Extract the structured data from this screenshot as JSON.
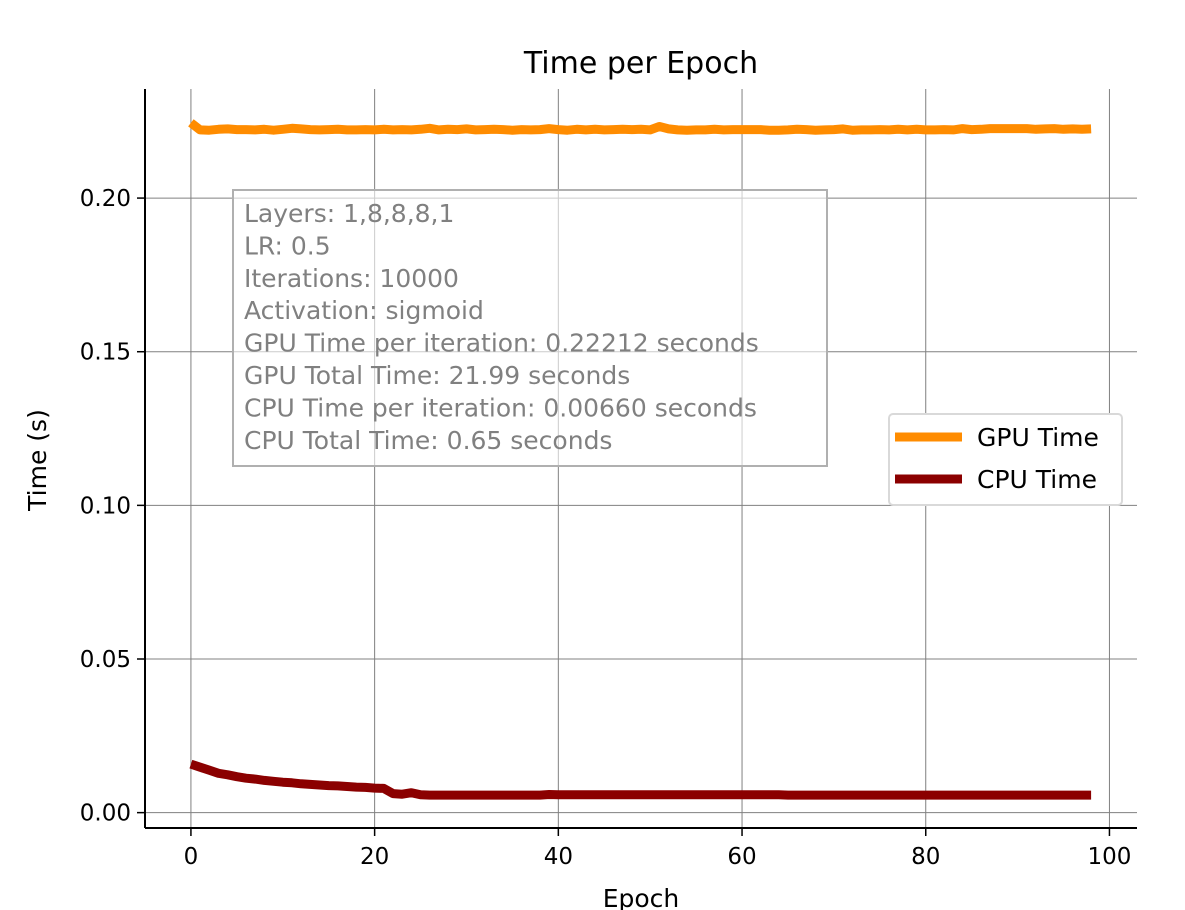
{
  "chart_data": {
    "type": "line",
    "title": "Time per Epoch",
    "xlabel": "Epoch",
    "ylabel": "Time (s)",
    "xlim": [
      -5,
      103
    ],
    "ylim": [
      -0.005,
      0.2355
    ],
    "xticks": [
      0,
      20,
      40,
      60,
      80,
      100
    ],
    "xtick_labels": [
      "0",
      "20",
      "40",
      "60",
      "80",
      "100"
    ],
    "yticks": [
      0.0,
      0.05,
      0.1,
      0.15,
      0.2
    ],
    "ytick_labels": [
      "0.00",
      "0.05",
      "0.10",
      "0.15",
      "0.20"
    ],
    "grid": true,
    "legend_position": "center-right",
    "annotation_lines": [
      "Layers: 1,8,8,8,1",
      "LR: 0.5",
      "Iterations: 10000",
      "Activation: sigmoid",
      "GPU Time per iteration: 0.22212 seconds",
      "GPU Total Time: 21.99 seconds",
      "CPU Time per iteration: 0.00660 seconds",
      "CPU Total Time: 0.65 seconds"
    ],
    "series": [
      {
        "name": "GPU Time",
        "color": "#ff8c00",
        "x": [
          0,
          1,
          2,
          3,
          4,
          5,
          6,
          7,
          8,
          9,
          10,
          11,
          12,
          13,
          14,
          15,
          16,
          17,
          18,
          19,
          20,
          21,
          22,
          23,
          24,
          25,
          26,
          27,
          28,
          29,
          30,
          31,
          32,
          33,
          34,
          35,
          36,
          37,
          38,
          39,
          40,
          41,
          42,
          43,
          44,
          45,
          46,
          47,
          48,
          49,
          50,
          51,
          52,
          53,
          54,
          55,
          56,
          57,
          58,
          59,
          60,
          61,
          62,
          63,
          64,
          65,
          66,
          67,
          68,
          69,
          70,
          71,
          72,
          73,
          74,
          75,
          76,
          77,
          78,
          79,
          80,
          81,
          82,
          83,
          84,
          85,
          86,
          87,
          88,
          89,
          90,
          91,
          92,
          93,
          94,
          95,
          96,
          97,
          98
        ],
        "y": [
          0.2245,
          0.2222,
          0.2221,
          0.2224,
          0.2225,
          0.2223,
          0.2223,
          0.2222,
          0.2224,
          0.2221,
          0.2224,
          0.2227,
          0.2225,
          0.2223,
          0.2222,
          0.2223,
          0.2224,
          0.2222,
          0.2222,
          0.2223,
          0.2222,
          0.2224,
          0.2222,
          0.2223,
          0.2222,
          0.2224,
          0.2227,
          0.2222,
          0.2224,
          0.2223,
          0.2225,
          0.2222,
          0.2223,
          0.2224,
          0.2223,
          0.2221,
          0.2223,
          0.2222,
          0.2223,
          0.2226,
          0.2223,
          0.2221,
          0.2224,
          0.2222,
          0.2224,
          0.2222,
          0.2223,
          0.2224,
          0.2223,
          0.2224,
          0.2222,
          0.2233,
          0.2225,
          0.2222,
          0.2221,
          0.2222,
          0.2222,
          0.2224,
          0.2222,
          0.2223,
          0.2223,
          0.2223,
          0.2223,
          0.2221,
          0.2221,
          0.2222,
          0.2224,
          0.2223,
          0.2221,
          0.2222,
          0.2223,
          0.2225,
          0.2221,
          0.2222,
          0.2222,
          0.2223,
          0.2222,
          0.2224,
          0.2222,
          0.2224,
          0.2222,
          0.2222,
          0.2223,
          0.2222,
          0.2226,
          0.2223,
          0.2224,
          0.2226,
          0.2226,
          0.2226,
          0.2226,
          0.2226,
          0.2224,
          0.2225,
          0.2226,
          0.2224,
          0.2225,
          0.2224,
          0.2225
        ]
      },
      {
        "name": "CPU Time",
        "color": "#8b0000",
        "x": [
          0,
          1,
          2,
          3,
          4,
          5,
          6,
          7,
          8,
          9,
          10,
          11,
          12,
          13,
          14,
          15,
          16,
          17,
          18,
          19,
          20,
          21,
          22,
          23,
          24,
          25,
          26,
          27,
          28,
          29,
          30,
          31,
          32,
          33,
          34,
          35,
          36,
          37,
          38,
          39,
          40,
          41,
          42,
          43,
          44,
          45,
          46,
          47,
          48,
          49,
          50,
          51,
          52,
          53,
          54,
          55,
          56,
          57,
          58,
          59,
          60,
          61,
          62,
          63,
          64,
          65,
          66,
          67,
          68,
          69,
          70,
          71,
          72,
          73,
          74,
          75,
          76,
          77,
          78,
          79,
          80,
          81,
          82,
          83,
          84,
          85,
          86,
          87,
          88,
          89,
          90,
          91,
          92,
          93,
          94,
          95,
          96,
          97,
          98
        ],
        "y": [
          0.0158,
          0.0148,
          0.0138,
          0.0128,
          0.0123,
          0.0117,
          0.0112,
          0.0109,
          0.0105,
          0.0102,
          0.0099,
          0.0097,
          0.0094,
          0.0092,
          0.009,
          0.0088,
          0.0087,
          0.0085,
          0.0083,
          0.0082,
          0.008,
          0.0079,
          0.0062,
          0.006,
          0.0065,
          0.0058,
          0.0057,
          0.0057,
          0.0057,
          0.0057,
          0.0057,
          0.0057,
          0.0057,
          0.0057,
          0.0057,
          0.0057,
          0.0057,
          0.0057,
          0.0057,
          0.0059,
          0.0058,
          0.0058,
          0.0058,
          0.0058,
          0.0058,
          0.0058,
          0.0058,
          0.0058,
          0.0058,
          0.0058,
          0.0058,
          0.0058,
          0.0058,
          0.0058,
          0.0058,
          0.0058,
          0.0058,
          0.0058,
          0.0058,
          0.0058,
          0.0058,
          0.0058,
          0.0058,
          0.0058,
          0.0058,
          0.0057,
          0.0057,
          0.0057,
          0.0057,
          0.0057,
          0.0057,
          0.0057,
          0.0057,
          0.0057,
          0.0057,
          0.0057,
          0.0057,
          0.0057,
          0.0057,
          0.0057,
          0.0057,
          0.0057,
          0.0057,
          0.0057,
          0.0057,
          0.0057,
          0.0057,
          0.0057,
          0.0057,
          0.0057,
          0.0057,
          0.0057,
          0.0057,
          0.0057,
          0.0057,
          0.0057,
          0.0057,
          0.0057,
          0.0057
        ]
      }
    ]
  }
}
